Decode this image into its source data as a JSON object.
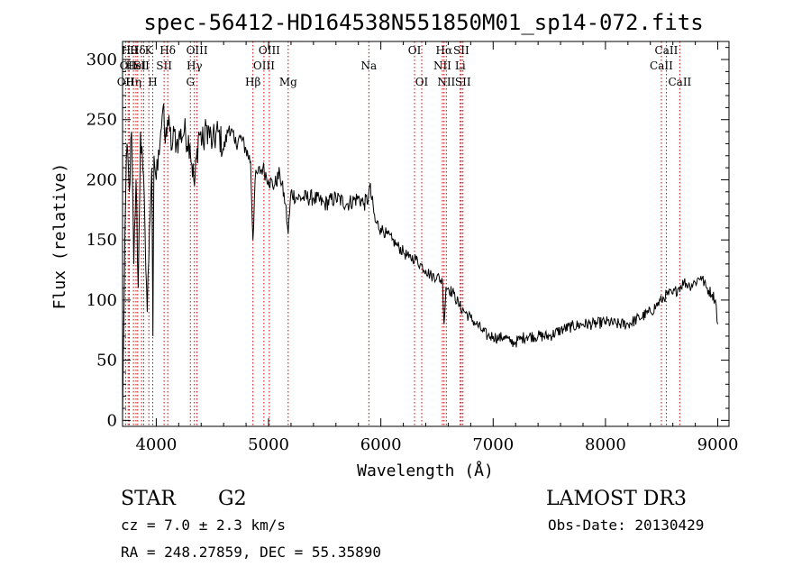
{
  "chart_data": {
    "type": "line",
    "title": "spec-56412-HD164538N551850M01_sp14-072.fits",
    "xlabel": "Wavelength (Å)",
    "ylabel": "Flux (relative)",
    "xlim": [
      3700,
      9100
    ],
    "ylim": [
      -5,
      315
    ],
    "xticks": [
      4000,
      5000,
      6000,
      7000,
      8000,
      9000
    ],
    "yticks": [
      0,
      50,
      100,
      150,
      200,
      250,
      300
    ],
    "line_color": "#000000",
    "marker_color": "#cc0000",
    "series": [
      {
        "x": [
          3700,
          3720,
          3740,
          3760,
          3780,
          3800,
          3820,
          3840,
          3860,
          3880,
          3900,
          3920,
          3940,
          3960,
          3970,
          3980,
          4000,
          4020,
          4040,
          4060,
          4080,
          4100,
          4120,
          4140,
          4160,
          4180,
          4200,
          4250,
          4300,
          4340,
          4380,
          4420,
          4450,
          4500,
          4550,
          4600,
          4650,
          4700,
          4750,
          4800,
          4840,
          4861,
          4880,
          4900,
          4950,
          5000,
          5050,
          5100,
          5150,
          5175,
          5200,
          5250,
          5300,
          5400,
          5500,
          5600,
          5700,
          5800,
          5850,
          5890,
          5900,
          5950,
          6000,
          6050,
          6100,
          6150,
          6200,
          6250,
          6300,
          6350,
          6400,
          6450,
          6500,
          6550,
          6563,
          6580,
          6600,
          6650,
          6700,
          6750,
          6800,
          6850,
          6900,
          6950,
          7000,
          7050,
          7100,
          7150,
          7200,
          7250,
          7300,
          7400,
          7500,
          7600,
          7700,
          7800,
          7900,
          8000,
          8100,
          8200,
          8300,
          8400,
          8450,
          8500,
          8550,
          8600,
          8650,
          8700,
          8750,
          8800,
          8850,
          8900,
          8950,
          8980,
          9000
        ],
        "values": [
          0,
          150,
          230,
          190,
          240,
          130,
          200,
          110,
          240,
          210,
          160,
          90,
          160,
          210,
          70,
          220,
          200,
          225,
          240,
          260,
          230,
          250,
          240,
          225,
          240,
          230,
          235,
          240,
          230,
          195,
          240,
          230,
          245,
          230,
          240,
          225,
          245,
          230,
          235,
          225,
          215,
          150,
          200,
          205,
          210,
          200,
          195,
          205,
          180,
          155,
          190,
          185,
          185,
          185,
          180,
          185,
          180,
          185,
          180,
          185,
          195,
          165,
          160,
          155,
          150,
          145,
          140,
          135,
          135,
          130,
          125,
          120,
          120,
          115,
          80,
          110,
          110,
          105,
          95,
          90,
          85,
          80,
          75,
          70,
          70,
          68,
          70,
          65,
          65,
          68,
          70,
          70,
          70,
          75,
          78,
          80,
          80,
          82,
          80,
          80,
          85,
          90,
          95,
          100,
          105,
          105,
          110,
          115,
          112,
          115,
          120,
          110,
          105,
          100,
          80
        ]
      }
    ],
    "lines": [
      {
        "wl": 3727,
        "row": 2,
        "label": "OII"
      },
      {
        "wl": 3750,
        "row": 1,
        "label": "OII"
      },
      {
        "wl": 3760,
        "row": 0,
        "label": "Hθ"
      },
      {
        "wl": 3797,
        "row": 2,
        "label": "Hη"
      },
      {
        "wl": 3820,
        "row": 1,
        "label": "HeI"
      },
      {
        "wl": 3835,
        "row": 0,
        "label": "Hδ"
      },
      {
        "wl": 3869,
        "row": 1,
        "label": "SII"
      },
      {
        "wl": 3889,
        "row": 0,
        "label": ""
      },
      {
        "wl": 3934,
        "row": 0,
        "label": "K"
      },
      {
        "wl": 3969,
        "row": 2,
        "label": "H"
      },
      {
        "wl": 4070,
        "row": 1,
        "label": "SII"
      },
      {
        "wl": 4102,
        "row": 0,
        "label": "Hδ"
      },
      {
        "wl": 4304,
        "row": 2,
        "label": "G"
      },
      {
        "wl": 4340,
        "row": 1,
        "label": "Hγ"
      },
      {
        "wl": 4363,
        "row": 0,
        "label": "OIII"
      },
      {
        "wl": 4861,
        "row": 2,
        "label": "Hβ"
      },
      {
        "wl": 4959,
        "row": 1,
        "label": "OIII"
      },
      {
        "wl": 5007,
        "row": 0,
        "label": "OIII"
      },
      {
        "wl": 5175,
        "row": 2,
        "label": "Mg"
      },
      {
        "wl": 5893,
        "row": 1,
        "label": "Na"
      },
      {
        "wl": 6300,
        "row": 0,
        "label": "OI"
      },
      {
        "wl": 6364,
        "row": 2,
        "label": "OI"
      },
      {
        "wl": 6548,
        "row": 1,
        "label": "NII"
      },
      {
        "wl": 6563,
        "row": 0,
        "label": "Hα"
      },
      {
        "wl": 6583,
        "row": 2,
        "label": "NII"
      },
      {
        "wl": 6707,
        "row": 1,
        "label": "Li"
      },
      {
        "wl": 6716,
        "row": 0,
        "label": "SII"
      },
      {
        "wl": 6731,
        "row": 2,
        "label": "SII"
      },
      {
        "wl": 8498,
        "row": 1,
        "label": "CaII"
      },
      {
        "wl": 8542,
        "row": 0,
        "label": "CaII"
      },
      {
        "wl": 8662,
        "row": 2,
        "label": "CaII"
      }
    ]
  },
  "info": {
    "class": "STAR",
    "subclass": "G2",
    "survey": "LAMOST DR3",
    "cz": "cz = 7.0 ± 2.3 km/s",
    "obs_date": "Obs-Date: 20130429",
    "radec": "RA = 248.27859, DEC =  55.35890"
  }
}
